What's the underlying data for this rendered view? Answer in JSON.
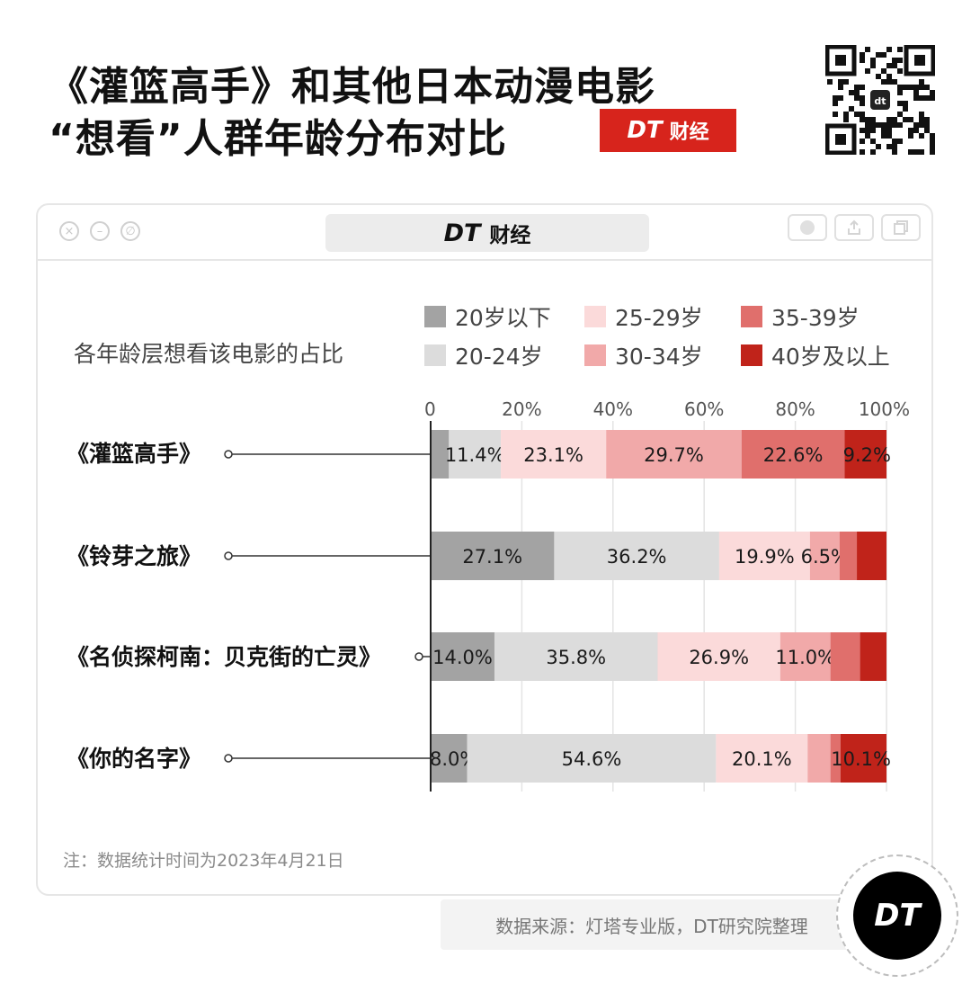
{
  "title": {
    "line1": "《灌篮高手》和其他日本动漫电影",
    "line2": "“想看”人群年龄分布对比"
  },
  "brand": {
    "dt": "DT",
    "cj": "财经"
  },
  "window": {
    "title_dt": "DT",
    "title_cj": "财经"
  },
  "subtitle": "各年龄层想看该电影的占比",
  "colors": {
    "age_under20": "#a3a3a3",
    "age_20_24": "#dcdcdc",
    "age_25_29": "#fbdada",
    "age_30_34": "#f1a9a9",
    "age_35_39": "#e06f6c",
    "age_40_plus": "#c0231a"
  },
  "chart_data": {
    "type": "bar",
    "orientation": "horizontal",
    "stacked": true,
    "title": "各年龄层想看该电影的占比",
    "xlim": [
      0,
      100
    ],
    "x_ticks": [
      "0",
      "20%",
      "40%",
      "60%",
      "80%",
      "100%"
    ],
    "grid": true,
    "legend_position": "top-right",
    "categories": [
      "《灌篮高手》",
      "《铃芽之旅》",
      "《名侦探柯南：贝克街的亡灵》",
      "《你的名字》"
    ],
    "series": [
      {
        "name": "20岁以下",
        "values": [
          4.0,
          27.1,
          14.0,
          8.0
        ],
        "labels": [
          "",
          "27.1%",
          "14.0%",
          "8.0%"
        ]
      },
      {
        "name": "20-24岁",
        "values": [
          11.4,
          36.2,
          35.8,
          54.6
        ],
        "labels": [
          "11.4%",
          "36.2%",
          "35.8%",
          "54.6%"
        ]
      },
      {
        "name": "25-29岁",
        "values": [
          23.1,
          19.9,
          26.9,
          20.1
        ],
        "labels": [
          "23.1%",
          "19.9%",
          "26.9%",
          "20.1%"
        ]
      },
      {
        "name": "30-34岁",
        "values": [
          29.7,
          6.5,
          11.0,
          5.0
        ],
        "labels": [
          "29.7%",
          "6.5%",
          "11.0%",
          ""
        ]
      },
      {
        "name": "35-39岁",
        "values": [
          22.6,
          3.8,
          6.5,
          2.2
        ],
        "labels": [
          "22.6%",
          "",
          "",
          ""
        ]
      },
      {
        "name": "40岁及以上",
        "values": [
          9.2,
          6.5,
          5.8,
          10.1
        ],
        "labels": [
          "9.2%",
          "",
          "",
          "10.1%"
        ]
      }
    ]
  },
  "note": "注：数据统计时间为2023年4月21日",
  "source": "数据来源：灯塔专业版，DT研究院整理",
  "logo": "DT"
}
